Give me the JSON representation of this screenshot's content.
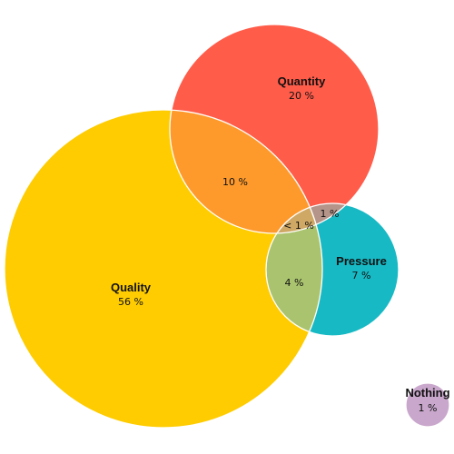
{
  "sets": [
    {
      "id": "quality",
      "name": "Quality",
      "value": "56 %",
      "color": "#fecc00"
    },
    {
      "id": "quantity",
      "name": "Quantity",
      "value": "20 %",
      "color": "#ff5c4a"
    },
    {
      "id": "pressure",
      "name": "Pressure",
      "value": "7 %",
      "color": "#17b9c4"
    },
    {
      "id": "nothing",
      "name": "Nothing",
      "value": "1 %",
      "color": "#c9a7cc"
    }
  ],
  "overlaps": [
    {
      "id": "quality-quantity",
      "sets": [
        "Quality",
        "Quantity"
      ],
      "value": "10 %",
      "color": "#fe9a2c"
    },
    {
      "id": "quantity-pressure",
      "sets": [
        "Quantity",
        "Pressure"
      ],
      "value": "1 %",
      "color": "#b5958a"
    },
    {
      "id": "quality-quantity-pressure",
      "sets": [
        "Quality",
        "Quantity",
        "Pressure"
      ],
      "value": "< 1 %",
      "color": "#cfa865"
    },
    {
      "id": "quality-pressure",
      "sets": [
        "Quality",
        "Pressure"
      ],
      "value": "4 %",
      "color": "#aac36e"
    }
  ]
}
